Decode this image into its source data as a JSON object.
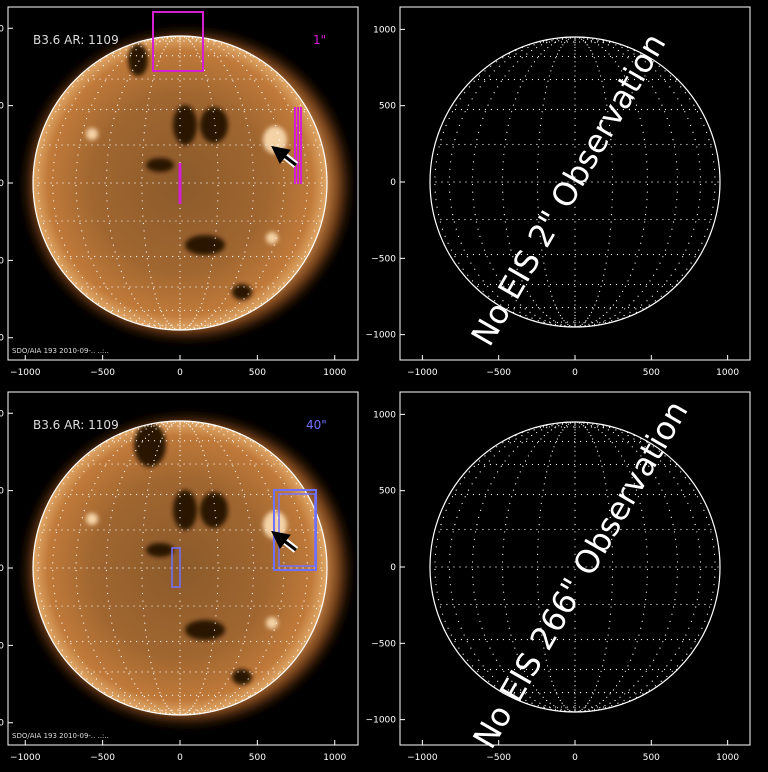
{
  "axis_ticks_x": [
    "−1000",
    "−500",
    "0",
    "500",
    "1000"
  ],
  "axis_ticks_y": [
    "1000",
    "500",
    "0",
    "−500",
    "−1000"
  ],
  "colors": {
    "magenta": "#d41fd4",
    "blue": "#7070ff",
    "sun_bright": "#f0c898",
    "sun_mid": "#a8682e",
    "sun_dark": "#3a1c08"
  },
  "panels": [
    {
      "id": "top-left",
      "kind": "image",
      "label_left": "B3.6 AR: 1109",
      "label_right": "1\"",
      "label_right_color": "#d41fd4",
      "footer": "SDO/AIA 193 2010-09-.. ..:..",
      "arrow_icon": "arrow-icon"
    },
    {
      "id": "top-right",
      "kind": "empty",
      "message": "No EIS 2\" Observation"
    },
    {
      "id": "bottom-left",
      "kind": "image",
      "label_left": "B3.6 AR: 1109",
      "label_right": "40\"",
      "label_right_color": "#7070ff",
      "footer": "SDO/AIA 193 2010-09-.. ..:..",
      "arrow_icon": "arrow-icon"
    },
    {
      "id": "bottom-right",
      "kind": "empty",
      "message": "No EIS 266\" Observation"
    }
  ]
}
